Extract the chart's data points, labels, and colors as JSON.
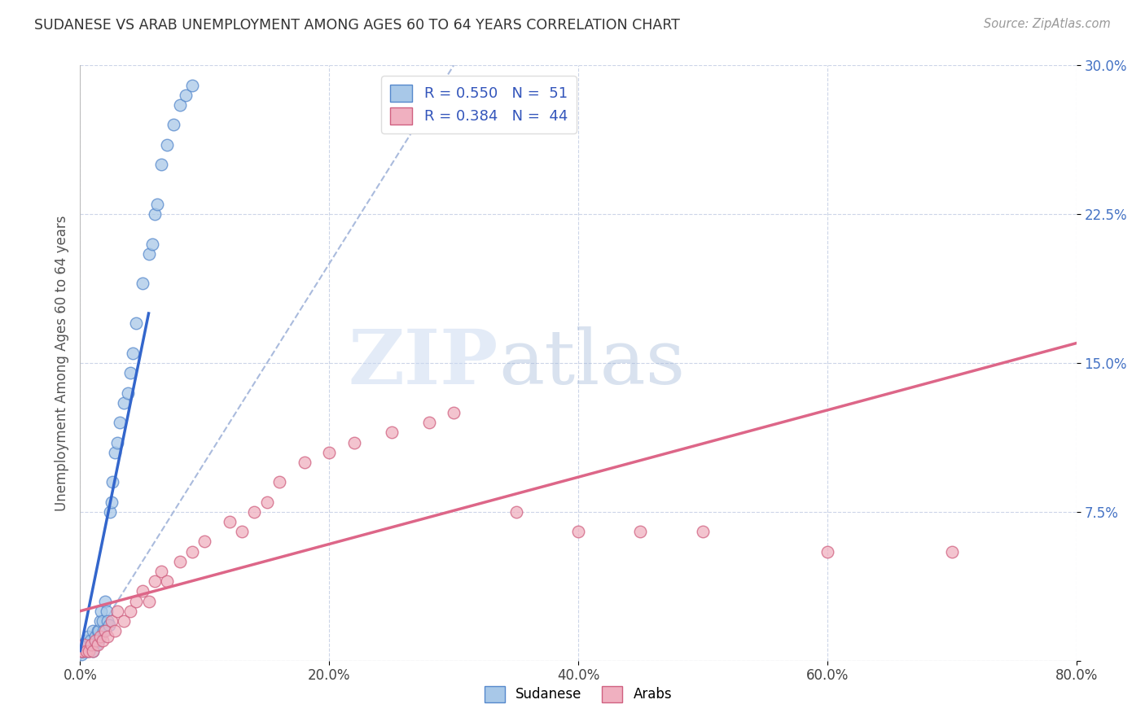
{
  "title": "SUDANESE VS ARAB UNEMPLOYMENT AMONG AGES 60 TO 64 YEARS CORRELATION CHART",
  "source": "Source: ZipAtlas.com",
  "ylabel": "Unemployment Among Ages 60 to 64 years",
  "xlim": [
    0.0,
    80.0
  ],
  "ylim": [
    0.0,
    30.0
  ],
  "xticks": [
    0.0,
    20.0,
    40.0,
    60.0,
    80.0
  ],
  "xticklabels": [
    "0.0%",
    "20.0%",
    "40.0%",
    "60.0%",
    "80.0%"
  ],
  "yticks": [
    0.0,
    7.5,
    15.0,
    22.5,
    30.0
  ],
  "yticklabels": [
    "",
    "7.5%",
    "15.0%",
    "22.5%",
    "30.0%"
  ],
  "legend_line1": "R = 0.550   N =  51",
  "legend_line2": "R = 0.384   N =  44",
  "color_sudanese_fill": "#a8c8e8",
  "color_sudanese_edge": "#5588cc",
  "color_arabs_fill": "#f0b0c0",
  "color_arabs_edge": "#d06080",
  "color_line_sudanese": "#3366cc",
  "color_line_arabs": "#dd6688",
  "color_ref_line": "#aabbdd",
  "watermark_zip": "ZIP",
  "watermark_atlas": "atlas",
  "background_color": "#ffffff",
  "grid_color": "#ccd5e8",
  "sudanese_x": [
    0.1,
    0.15,
    0.2,
    0.25,
    0.3,
    0.4,
    0.5,
    0.5,
    0.6,
    0.7,
    0.8,
    0.9,
    1.0,
    1.0,
    1.1,
    1.2,
    1.2,
    1.3,
    1.4,
    1.5,
    1.5,
    1.6,
    1.7,
    1.8,
    1.9,
    2.0,
    2.1,
    2.2,
    2.3,
    2.4,
    2.5,
    2.6,
    2.8,
    3.0,
    3.2,
    3.5,
    3.8,
    4.0,
    4.2,
    4.5,
    5.0,
    5.5,
    5.8,
    6.0,
    6.2,
    6.5,
    7.0,
    7.5,
    8.0,
    8.5,
    9.0
  ],
  "sudanese_y": [
    0.3,
    0.5,
    0.5,
    0.8,
    0.5,
    0.8,
    0.5,
    1.0,
    1.2,
    0.5,
    1.0,
    0.8,
    0.5,
    1.5,
    0.8,
    1.0,
    1.2,
    0.8,
    1.5,
    1.0,
    1.5,
    2.0,
    2.5,
    2.0,
    1.5,
    3.0,
    2.5,
    2.0,
    1.8,
    7.5,
    8.0,
    9.0,
    10.5,
    11.0,
    12.0,
    13.0,
    13.5,
    14.5,
    15.5,
    17.0,
    19.0,
    20.5,
    21.0,
    22.5,
    23.0,
    25.0,
    26.0,
    27.0,
    28.0,
    28.5,
    29.0
  ],
  "arabs_x": [
    0.1,
    0.2,
    0.3,
    0.5,
    0.7,
    0.9,
    1.0,
    1.2,
    1.4,
    1.6,
    1.8,
    2.0,
    2.2,
    2.5,
    2.8,
    3.0,
    3.5,
    4.0,
    4.5,
    5.0,
    5.5,
    6.0,
    6.5,
    7.0,
    8.0,
    9.0,
    10.0,
    12.0,
    13.0,
    14.0,
    15.0,
    16.0,
    18.0,
    20.0,
    22.0,
    25.0,
    28.0,
    30.0,
    35.0,
    40.0,
    45.0,
    50.0,
    60.0,
    70.0
  ],
  "arabs_y": [
    0.5,
    0.5,
    0.8,
    0.5,
    0.5,
    0.8,
    0.5,
    1.0,
    0.8,
    1.2,
    1.0,
    1.5,
    1.2,
    2.0,
    1.5,
    2.5,
    2.0,
    2.5,
    3.0,
    3.5,
    3.0,
    4.0,
    4.5,
    4.0,
    5.0,
    5.5,
    6.0,
    7.0,
    6.5,
    7.5,
    8.0,
    9.0,
    10.0,
    10.5,
    11.0,
    11.5,
    12.0,
    12.5,
    7.5,
    6.5,
    6.5,
    6.5,
    5.5,
    5.5
  ],
  "sudanese_reg_x0": 0.0,
  "sudanese_reg_x1": 5.5,
  "sudanese_reg_y0": 0.5,
  "sudanese_reg_y1": 17.5,
  "arabs_reg_x0": 0.0,
  "arabs_reg_x1": 80.0,
  "arabs_reg_y0": 2.5,
  "arabs_reg_y1": 16.0,
  "ref_line_x0": 0.0,
  "ref_line_y0": 0.0,
  "ref_line_x1": 30.0,
  "ref_line_y1": 30.0
}
